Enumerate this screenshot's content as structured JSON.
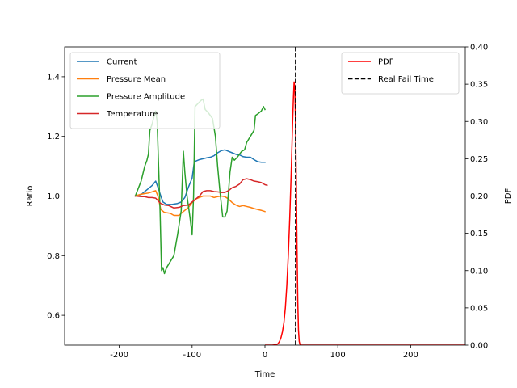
{
  "chart_data": {
    "type": "line",
    "xlabel": "Time",
    "xlim": [
      -275,
      275
    ],
    "xticks": [
      -200,
      -100,
      0,
      100,
      200
    ],
    "left_axis": {
      "label": "Ratio",
      "ylim": [
        0.5,
        1.5
      ],
      "ticks": [
        0.6,
        0.8,
        1.0,
        1.2,
        1.4
      ],
      "tick_labels": [
        "0.6",
        "0.8",
        "1.0",
        "1.2",
        "1.4"
      ],
      "legend_position": "upper-left",
      "series": [
        {
          "name": "Current",
          "color": "#1f77b4",
          "points": [
            [
              -178,
              1.0
            ],
            [
              -170,
              1.005
            ],
            [
              -165,
              1.015
            ],
            [
              -160,
              1.025
            ],
            [
              -155,
              1.035
            ],
            [
              -150,
              1.05
            ],
            [
              -147,
              1.03
            ],
            [
              -143,
              1.0
            ],
            [
              -140,
              0.98
            ],
            [
              -135,
              0.972
            ],
            [
              -128,
              0.972
            ],
            [
              -120,
              0.975
            ],
            [
              -115,
              0.98
            ],
            [
              -110,
              0.995
            ],
            [
              -105,
              1.03
            ],
            [
              -100,
              1.06
            ],
            [
              -97,
              1.115
            ],
            [
              -90,
              1.122
            ],
            [
              -85,
              1.125
            ],
            [
              -80,
              1.128
            ],
            [
              -75,
              1.13
            ],
            [
              -70,
              1.135
            ],
            [
              -65,
              1.145
            ],
            [
              -60,
              1.152
            ],
            [
              -55,
              1.155
            ],
            [
              -50,
              1.15
            ],
            [
              -45,
              1.145
            ],
            [
              -40,
              1.14
            ],
            [
              -35,
              1.138
            ],
            [
              -30,
              1.132
            ],
            [
              -25,
              1.13
            ],
            [
              -20,
              1.13
            ],
            [
              -15,
              1.122
            ],
            [
              -10,
              1.115
            ],
            [
              -5,
              1.113
            ],
            [
              0,
              1.113
            ]
          ]
        },
        {
          "name": "Pressure Mean",
          "color": "#ff7f0e",
          "points": [
            [
              -178,
              1.0
            ],
            [
              -172,
              1.005
            ],
            [
              -165,
              1.008
            ],
            [
              -160,
              1.01
            ],
            [
              -150,
              1.018
            ],
            [
              -147,
              1.0
            ],
            [
              -143,
              0.955
            ],
            [
              -138,
              0.945
            ],
            [
              -130,
              0.942
            ],
            [
              -125,
              0.935
            ],
            [
              -118,
              0.935
            ],
            [
              -112,
              0.948
            ],
            [
              -105,
              0.962
            ],
            [
              -100,
              0.978
            ],
            [
              -95,
              0.99
            ],
            [
              -90,
              0.995
            ],
            [
              -85,
              1.0
            ],
            [
              -80,
              1.0
            ],
            [
              -75,
              1.0
            ],
            [
              -70,
              0.995
            ],
            [
              -65,
              0.998
            ],
            [
              -60,
              1.0
            ],
            [
              -55,
              0.998
            ],
            [
              -50,
              0.99
            ],
            [
              -45,
              0.978
            ],
            [
              -40,
              0.97
            ],
            [
              -35,
              0.965
            ],
            [
              -30,
              0.968
            ],
            [
              -25,
              0.965
            ],
            [
              -20,
              0.962
            ],
            [
              -15,
              0.958
            ],
            [
              -10,
              0.955
            ],
            [
              -5,
              0.952
            ],
            [
              0,
              0.948
            ]
          ]
        },
        {
          "name": "Pressure Amplitude",
          "color": "#2ca02c",
          "points": [
            [
              -178,
              1.0
            ],
            [
              -170,
              1.05
            ],
            [
              -165,
              1.1
            ],
            [
              -162,
              1.12
            ],
            [
              -160,
              1.14
            ],
            [
              -158,
              1.22
            ],
            [
              -155,
              1.24
            ],
            [
              -152,
              1.27
            ],
            [
              -150,
              1.285
            ],
            [
              -148,
              1.25
            ],
            [
              -146,
              1.1
            ],
            [
              -144,
              0.95
            ],
            [
              -142,
              0.75
            ],
            [
              -140,
              0.76
            ],
            [
              -138,
              0.74
            ],
            [
              -135,
              0.76
            ],
            [
              -130,
              0.78
            ],
            [
              -125,
              0.8
            ],
            [
              -120,
              0.87
            ],
            [
              -115,
              0.95
            ],
            [
              -112,
              1.15
            ],
            [
              -110,
              1.08
            ],
            [
              -107,
              1.0
            ],
            [
              -103,
              0.93
            ],
            [
              -100,
              0.87
            ],
            [
              -98,
              1.0
            ],
            [
              -96,
              1.3
            ],
            [
              -92,
              1.31
            ],
            [
              -88,
              1.32
            ],
            [
              -85,
              1.325
            ],
            [
              -82,
              1.29
            ],
            [
              -78,
              1.28
            ],
            [
              -75,
              1.27
            ],
            [
              -72,
              1.26
            ],
            [
              -68,
              1.2
            ],
            [
              -65,
              1.1
            ],
            [
              -62,
              1.02
            ],
            [
              -58,
              0.93
            ],
            [
              -55,
              0.93
            ],
            [
              -52,
              0.95
            ],
            [
              -48,
              1.08
            ],
            [
              -45,
              1.13
            ],
            [
              -42,
              1.12
            ],
            [
              -38,
              1.13
            ],
            [
              -35,
              1.14
            ],
            [
              -32,
              1.15
            ],
            [
              -28,
              1.155
            ],
            [
              -25,
              1.18
            ],
            [
              -20,
              1.2
            ],
            [
              -15,
              1.22
            ],
            [
              -13,
              1.27
            ],
            [
              -10,
              1.275
            ],
            [
              -5,
              1.285
            ],
            [
              -2,
              1.3
            ],
            [
              0,
              1.29
            ]
          ]
        },
        {
          "name": "Temperature",
          "color": "#d62728",
          "points": [
            [
              -178,
              1.0
            ],
            [
              -170,
              0.998
            ],
            [
              -165,
              0.998
            ],
            [
              -160,
              0.995
            ],
            [
              -155,
              0.995
            ],
            [
              -150,
              0.993
            ],
            [
              -147,
              0.985
            ],
            [
              -143,
              0.975
            ],
            [
              -138,
              0.97
            ],
            [
              -132,
              0.968
            ],
            [
              -125,
              0.96
            ],
            [
              -118,
              0.962
            ],
            [
              -112,
              0.968
            ],
            [
              -105,
              0.97
            ],
            [
              -100,
              0.98
            ],
            [
              -95,
              0.99
            ],
            [
              -90,
              1.0
            ],
            [
              -85,
              1.015
            ],
            [
              -80,
              1.018
            ],
            [
              -75,
              1.018
            ],
            [
              -70,
              1.015
            ],
            [
              -65,
              1.014
            ],
            [
              -60,
              1.012
            ],
            [
              -55,
              1.012
            ],
            [
              -50,
              1.018
            ],
            [
              -45,
              1.028
            ],
            [
              -40,
              1.032
            ],
            [
              -35,
              1.04
            ],
            [
              -30,
              1.055
            ],
            [
              -25,
              1.058
            ],
            [
              -20,
              1.055
            ],
            [
              -15,
              1.05
            ],
            [
              -10,
              1.048
            ],
            [
              -5,
              1.045
            ],
            [
              0,
              1.038
            ],
            [
              3,
              1.036
            ]
          ]
        }
      ]
    },
    "right_axis": {
      "label": "PDF",
      "ylim": [
        0.0,
        0.4
      ],
      "ticks": [
        0.0,
        0.05,
        0.1,
        0.15,
        0.2,
        0.25,
        0.3,
        0.35,
        0.4
      ],
      "tick_labels": [
        "0.00",
        "0.05",
        "0.10",
        "0.15",
        "0.20",
        "0.25",
        "0.30",
        "0.35",
        "0.40"
      ],
      "legend_position": "upper-right",
      "series": [
        {
          "name": "PDF",
          "color": "#ff0000",
          "style": "solid",
          "points": [
            [
              0,
              0.0
            ],
            [
              10,
              0.0
            ],
            [
              15,
              0.0005
            ],
            [
              18,
              0.002
            ],
            [
              20,
              0.005
            ],
            [
              22,
              0.01
            ],
            [
              24,
              0.018
            ],
            [
              26,
              0.03
            ],
            [
              28,
              0.05
            ],
            [
              30,
              0.08
            ],
            [
              32,
              0.12
            ],
            [
              34,
              0.17
            ],
            [
              36,
              0.23
            ],
            [
              38,
              0.3
            ],
            [
              39,
              0.33
            ],
            [
              40,
              0.353
            ],
            [
              41,
              0.345
            ],
            [
              42,
              0.3
            ],
            [
              43,
              0.22
            ],
            [
              44,
              0.13
            ],
            [
              45,
              0.06
            ],
            [
              46,
              0.02
            ],
            [
              47,
              0.005
            ],
            [
              48,
              0.001
            ],
            [
              50,
              0.0
            ],
            [
              100,
              0.0
            ],
            [
              200,
              0.0
            ],
            [
              275,
              0.0
            ]
          ]
        }
      ],
      "vlines": [
        {
          "name": "Real Fail Time",
          "x": 42,
          "color": "#000000",
          "style": "dashed"
        }
      ]
    }
  }
}
